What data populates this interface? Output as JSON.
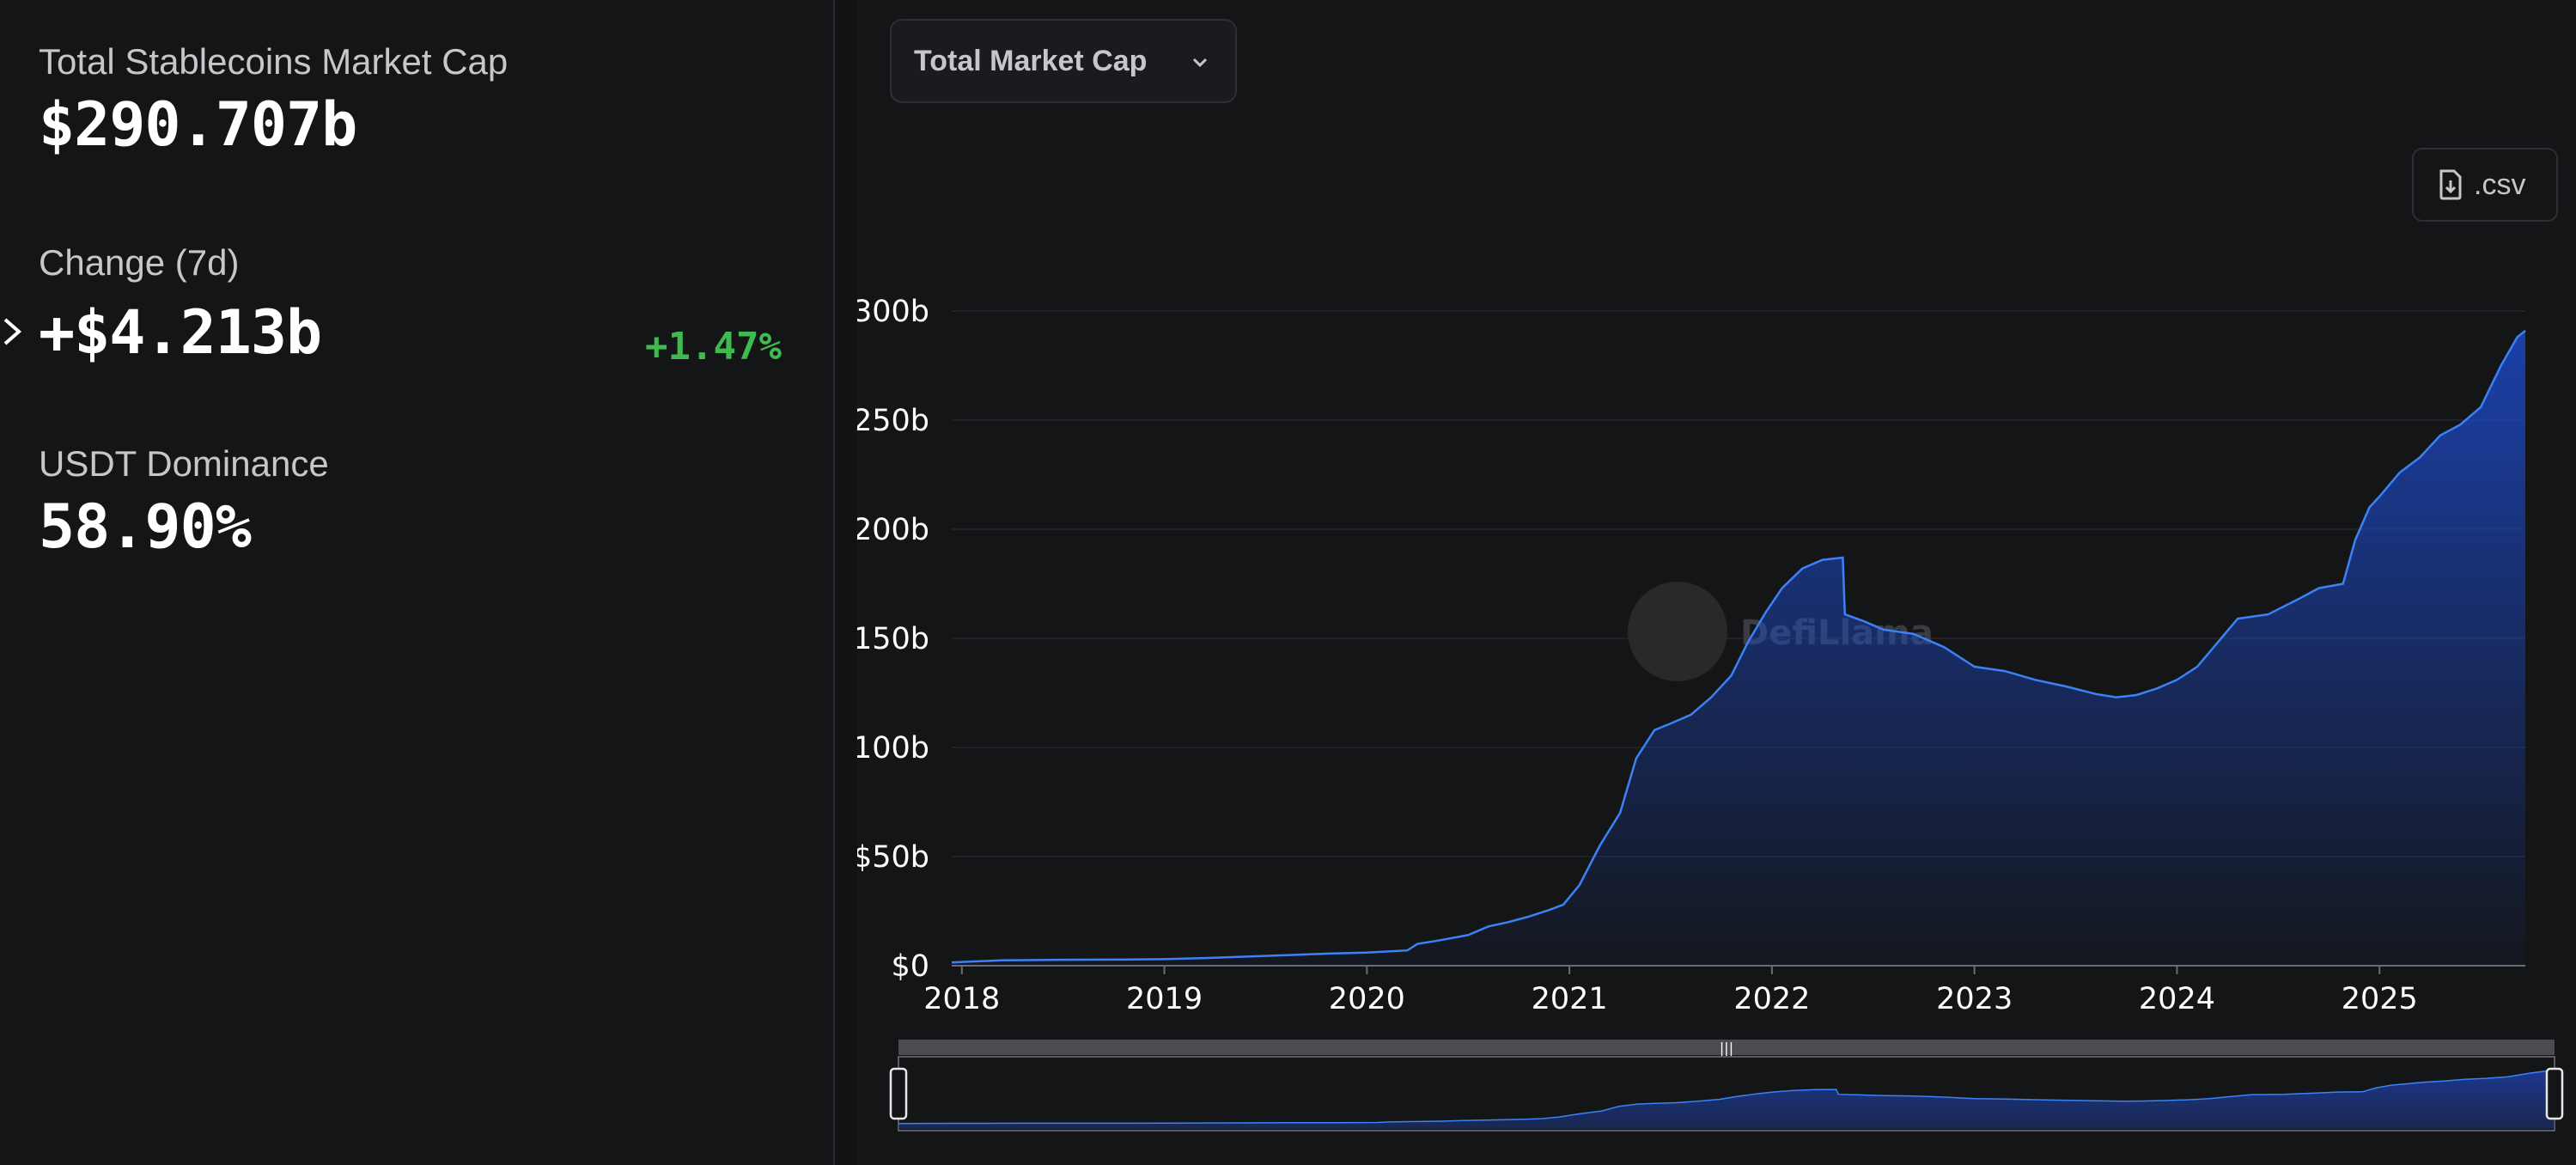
{
  "stats": {
    "market_cap_label": "Total Stablecoins Market Cap",
    "market_cap_value": "$290.707b",
    "change_label": "Change (7d)",
    "change_value": "+$4.213b",
    "change_pct": "+1.47%",
    "dominance_label": "USDT Dominance",
    "dominance_value": "58.90%"
  },
  "controls": {
    "dropdown_label": "Total Market Cap",
    "csv_label": ".csv"
  },
  "watermark": "DefiLlama",
  "colors": {
    "background": "#141517",
    "line": "#3b82f6",
    "positive": "#3fb950",
    "fill_top": "#1d4ed8"
  },
  "chart_data": {
    "type": "area",
    "title": "",
    "xlabel": "",
    "ylabel": "",
    "ylim": [
      0,
      300
    ],
    "yticks": [
      {
        "value": 0,
        "label": "$0"
      },
      {
        "value": 50,
        "label": "$50b"
      },
      {
        "value": 100,
        "label": "$100b"
      },
      {
        "value": 150,
        "label": "$150b"
      },
      {
        "value": 200,
        "label": "$200b"
      },
      {
        "value": 250,
        "label": "$250b"
      },
      {
        "value": 300,
        "label": "$300b"
      }
    ],
    "xlim": [
      2017.95,
      2025.72
    ],
    "xticks": [
      {
        "value": 2018,
        "label": "2018"
      },
      {
        "value": 2019,
        "label": "2019"
      },
      {
        "value": 2020,
        "label": "2020"
      },
      {
        "value": 2021,
        "label": "2021"
      },
      {
        "value": 2022,
        "label": "2022"
      },
      {
        "value": 2023,
        "label": "2023"
      },
      {
        "value": 2024,
        "label": "2024"
      },
      {
        "value": 2025,
        "label": "2025"
      }
    ],
    "grid": true,
    "legend": "none",
    "series": [
      {
        "values": [
          [
            2017.95,
            1.5
          ],
          [
            2018.2,
            2.5
          ],
          [
            2018.5,
            2.7
          ],
          [
            2018.8,
            2.8
          ],
          [
            2019.0,
            3.0
          ],
          [
            2019.2,
            3.5
          ],
          [
            2019.5,
            4.5
          ],
          [
            2019.8,
            5.5
          ],
          [
            2020.0,
            6.0
          ],
          [
            2020.2,
            7.0
          ],
          [
            2020.25,
            10.0
          ],
          [
            2020.35,
            11.5
          ],
          [
            2020.5,
            14.0
          ],
          [
            2020.6,
            18.0
          ],
          [
            2020.7,
            20.0
          ],
          [
            2020.8,
            22.5
          ],
          [
            2020.9,
            25.5
          ],
          [
            2020.97,
            28.0
          ],
          [
            2021.05,
            37.0
          ],
          [
            2021.15,
            55.0
          ],
          [
            2021.25,
            70.0
          ],
          [
            2021.33,
            95.0
          ],
          [
            2021.42,
            108.0
          ],
          [
            2021.5,
            111.0
          ],
          [
            2021.6,
            115.0
          ],
          [
            2021.7,
            123.0
          ],
          [
            2021.8,
            133.0
          ],
          [
            2021.88,
            148.0
          ],
          [
            2021.97,
            162.0
          ],
          [
            2022.05,
            173.0
          ],
          [
            2022.15,
            182.0
          ],
          [
            2022.25,
            186.0
          ],
          [
            2022.35,
            187.0
          ],
          [
            2022.36,
            161.0
          ],
          [
            2022.45,
            158.0
          ],
          [
            2022.55,
            154.0
          ],
          [
            2022.7,
            152.0
          ],
          [
            2022.85,
            146.0
          ],
          [
            2023.0,
            137.0
          ],
          [
            2023.15,
            135.0
          ],
          [
            2023.3,
            131.0
          ],
          [
            2023.45,
            128.0
          ],
          [
            2023.6,
            124.5
          ],
          [
            2023.7,
            123.0
          ],
          [
            2023.8,
            124.0
          ],
          [
            2023.9,
            127.0
          ],
          [
            2024.0,
            131.0
          ],
          [
            2024.1,
            137.0
          ],
          [
            2024.2,
            148.0
          ],
          [
            2024.3,
            159.0
          ],
          [
            2024.45,
            161.0
          ],
          [
            2024.6,
            168.0
          ],
          [
            2024.7,
            173.0
          ],
          [
            2024.82,
            175.0
          ],
          [
            2024.88,
            195.0
          ],
          [
            2024.95,
            210.0
          ],
          [
            2025.0,
            215.0
          ],
          [
            2025.1,
            226.0
          ],
          [
            2025.2,
            233.0
          ],
          [
            2025.3,
            243.0
          ],
          [
            2025.4,
            248.0
          ],
          [
            2025.5,
            256.0
          ],
          [
            2025.6,
            275.0
          ],
          [
            2025.68,
            288.0
          ],
          [
            2025.72,
            291.0
          ]
        ]
      }
    ]
  }
}
